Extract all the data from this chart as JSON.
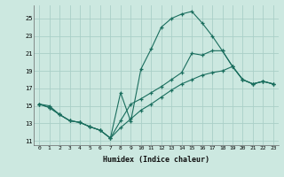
{
  "title": "",
  "xlabel": "Humidex (Indice chaleur)",
  "ylabel": "",
  "bg_color": "#cce8e0",
  "line_color": "#1a6e5e",
  "grid_color": "#aacfc8",
  "xlim": [
    -0.5,
    23.5
  ],
  "ylim": [
    10.5,
    26.5
  ],
  "xticks": [
    0,
    1,
    2,
    3,
    4,
    5,
    6,
    7,
    8,
    9,
    10,
    11,
    12,
    13,
    14,
    15,
    16,
    17,
    18,
    19,
    20,
    21,
    22,
    23
  ],
  "yticks": [
    11,
    13,
    15,
    17,
    19,
    21,
    23,
    25
  ],
  "line1_x": [
    0,
    1,
    2,
    3,
    4,
    5,
    6,
    7,
    8,
    9,
    10,
    11,
    12,
    13,
    14,
    15,
    16,
    17,
    18,
    19,
    20,
    21,
    22,
    23
  ],
  "line1_y": [
    15.2,
    15.0,
    14.0,
    13.3,
    13.1,
    12.6,
    12.2,
    11.3,
    16.5,
    13.2,
    19.2,
    21.5,
    24.0,
    25.0,
    25.5,
    25.8,
    24.5,
    23.0,
    21.3,
    19.5,
    18.0,
    17.5,
    17.8,
    17.5
  ],
  "line2_x": [
    0,
    1,
    2,
    3,
    4,
    5,
    6,
    7,
    8,
    9,
    10,
    11,
    12,
    13,
    14,
    15,
    16,
    17,
    18,
    19,
    20,
    21,
    22,
    23
  ],
  "line2_y": [
    15.2,
    14.8,
    14.0,
    13.3,
    13.1,
    12.6,
    12.2,
    11.3,
    13.3,
    15.2,
    15.8,
    16.5,
    17.2,
    18.0,
    18.8,
    21.0,
    20.8,
    21.3,
    21.3,
    19.5,
    18.0,
    17.5,
    17.8,
    17.5
  ],
  "line3_x": [
    0,
    1,
    2,
    3,
    4,
    5,
    6,
    7,
    8,
    9,
    10,
    11,
    12,
    13,
    14,
    15,
    16,
    17,
    18,
    19,
    20,
    21,
    22,
    23
  ],
  "line3_y": [
    15.2,
    14.8,
    14.0,
    13.3,
    13.1,
    12.6,
    12.2,
    11.3,
    12.5,
    13.5,
    14.5,
    15.2,
    16.0,
    16.8,
    17.5,
    18.0,
    18.5,
    18.8,
    19.0,
    19.5,
    18.0,
    17.5,
    17.8,
    17.5
  ]
}
